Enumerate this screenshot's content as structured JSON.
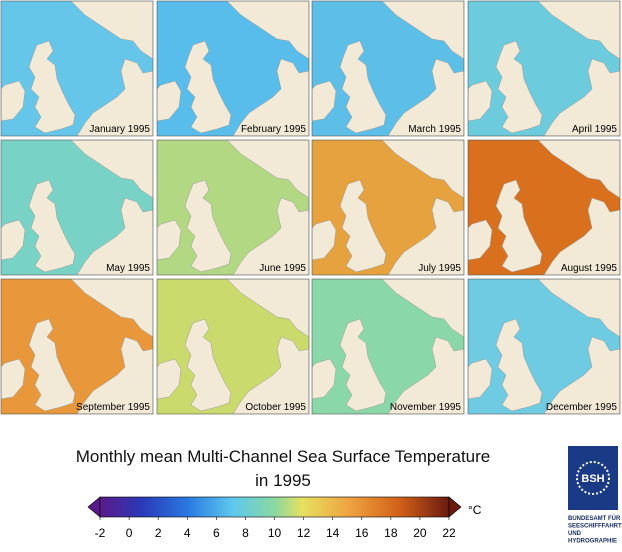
{
  "title": {
    "line1": "Monthly mean Multi-Channel Sea Surface Temperature",
    "line2": "in 1995"
  },
  "panels": [
    {
      "label": "January 1995",
      "sea_color": "#66c6ea"
    },
    {
      "label": "February 1995",
      "sea_color": "#58bdeb"
    },
    {
      "label": "March 1995",
      "sea_color": "#5dbfe8"
    },
    {
      "label": "April 1995",
      "sea_color": "#6ccbdc"
    },
    {
      "label": "May 1995",
      "sea_color": "#78d2c6"
    },
    {
      "label": "June 1995",
      "sea_color": "#b2d884"
    },
    {
      "label": "July 1995",
      "sea_color": "#e6a23e"
    },
    {
      "label": "August 1995",
      "sea_color": "#d8701e"
    },
    {
      "label": "September 1995",
      "sea_color": "#e8983a"
    },
    {
      "label": "October 1995",
      "sea_color": "#cada6c"
    },
    {
      "label": "November 1995",
      "sea_color": "#8ad8aa"
    },
    {
      "label": "December 1995",
      "sea_color": "#6ecbe2"
    }
  ],
  "colorbar": {
    "ticks": [
      -2,
      0,
      2,
      4,
      6,
      8,
      10,
      12,
      14,
      16,
      18,
      20,
      22
    ],
    "unit": "°C"
  },
  "logo": {
    "mark": "BSH",
    "lines": [
      "BUNDESAMT FÜR",
      "SEESCHIFFFAHRT",
      "UND",
      "HYDROGRAPHIE"
    ]
  }
}
